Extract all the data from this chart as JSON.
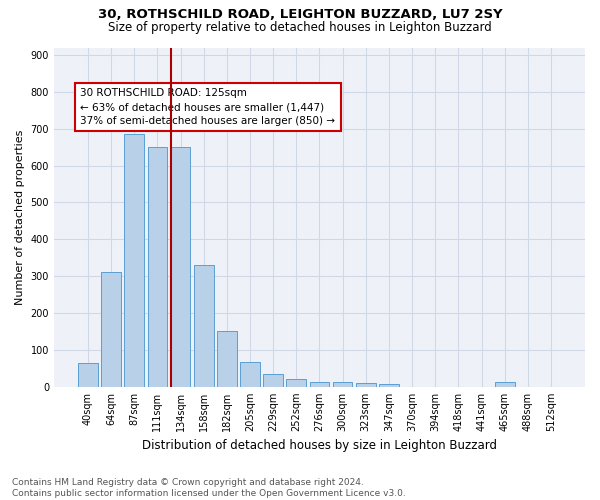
{
  "title1": "30, ROTHSCHILD ROAD, LEIGHTON BUZZARD, LU7 2SY",
  "title2": "Size of property relative to detached houses in Leighton Buzzard",
  "xlabel": "Distribution of detached houses by size in Leighton Buzzard",
  "ylabel": "Number of detached properties",
  "footnote1": "Contains HM Land Registry data © Crown copyright and database right 2024.",
  "footnote2": "Contains public sector information licensed under the Open Government Licence v3.0.",
  "bar_labels": [
    "40sqm",
    "64sqm",
    "87sqm",
    "111sqm",
    "134sqm",
    "158sqm",
    "182sqm",
    "205sqm",
    "229sqm",
    "252sqm",
    "276sqm",
    "300sqm",
    "323sqm",
    "347sqm",
    "370sqm",
    "394sqm",
    "418sqm",
    "441sqm",
    "465sqm",
    "488sqm",
    "512sqm"
  ],
  "bar_values": [
    65,
    310,
    685,
    650,
    650,
    330,
    150,
    68,
    35,
    22,
    12,
    12,
    10,
    8,
    0,
    0,
    0,
    0,
    12,
    0,
    0
  ],
  "bar_color": "#b8d0e8",
  "bar_edgecolor": "#5a9fd4",
  "vline_pos": 3.575,
  "vline_color": "#aa0000",
  "annotation_text": "30 ROTHSCHILD ROAD: 125sqm\n← 63% of detached houses are smaller (1,447)\n37% of semi-detached houses are larger (850) →",
  "annotation_box_color": "#cc0000",
  "ylim": [
    0,
    920
  ],
  "yticks": [
    0,
    100,
    200,
    300,
    400,
    500,
    600,
    700,
    800,
    900
  ],
  "grid_color": "#d0d8e8",
  "bg_color": "#eef2f8",
  "title1_fontsize": 9.5,
  "title2_fontsize": 8.5,
  "xlabel_fontsize": 8.5,
  "ylabel_fontsize": 8,
  "footnote_fontsize": 6.5,
  "tick_fontsize": 7,
  "annot_fontsize": 7.5
}
